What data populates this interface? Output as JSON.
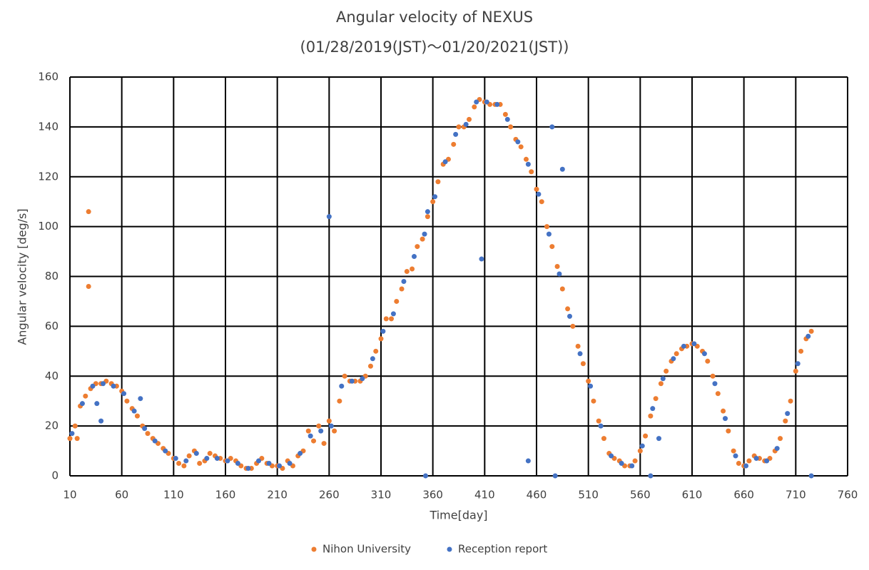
{
  "chart_data": {
    "type": "scatter",
    "title": "Angular velocity of NEXUS",
    "subtitle": "(01/28/2019(JST)～01/20/2021(JST))",
    "x_label": "Time[day]",
    "y_label": "Angular velocity [deg/s]",
    "xlim": [
      10,
      760
    ],
    "xticks": [
      10,
      60,
      110,
      160,
      210,
      260,
      310,
      360,
      410,
      460,
      510,
      560,
      610,
      660,
      710,
      760
    ],
    "ylim": [
      0,
      160
    ],
    "yticks": [
      0,
      20,
      40,
      60,
      80,
      100,
      120,
      140,
      160
    ],
    "grid": true,
    "legend": "bottom",
    "series": [
      {
        "name": "Nihon University",
        "color": "#ed7d31",
        "x": [
          10,
          15,
          20,
          25,
          30,
          35,
          40,
          45,
          50,
          55,
          60,
          65,
          70,
          75,
          80,
          85,
          90,
          95,
          100,
          105,
          110,
          115,
          120,
          125,
          130,
          135,
          140,
          145,
          150,
          155,
          160,
          165,
          170,
          175,
          180,
          185,
          190,
          195,
          200,
          205,
          210,
          215,
          220,
          225,
          230,
          235,
          240,
          245,
          250,
          255,
          260,
          265,
          270,
          275,
          280,
          285,
          290,
          295,
          300,
          305,
          310,
          315,
          320,
          325,
          330,
          335,
          340,
          345,
          350,
          355,
          360,
          365,
          370,
          375,
          380,
          385,
          390,
          395,
          400,
          405,
          410,
          415,
          420,
          425,
          430,
          435,
          440,
          445,
          450,
          455,
          460,
          465,
          470,
          475,
          480,
          485,
          490,
          495,
          500,
          505,
          510,
          515,
          520,
          525,
          530,
          535,
          540,
          545,
          550,
          555,
          560,
          565,
          570,
          575,
          580,
          585,
          590,
          595,
          600,
          605,
          610,
          615,
          620,
          625,
          630,
          635,
          640,
          645,
          650,
          655,
          660,
          665,
          670,
          675,
          680,
          685,
          690,
          695,
          700,
          705,
          710,
          715,
          720,
          725,
          28,
          28,
          17
        ],
        "values": [
          15,
          20,
          28,
          32,
          35,
          37,
          37,
          38,
          37,
          36,
          34,
          30,
          27,
          24,
          20,
          17,
          15,
          13,
          11,
          9,
          7,
          5,
          4,
          8,
          10,
          5,
          6,
          9,
          8,
          7,
          6,
          7,
          6,
          4,
          3,
          3,
          5,
          7,
          5,
          4,
          4,
          3,
          6,
          4,
          8,
          10,
          18,
          14,
          20,
          13,
          22,
          18,
          30,
          40,
          38,
          38,
          38,
          40,
          44,
          50,
          55,
          63,
          63,
          70,
          75,
          82,
          83,
          92,
          95,
          104,
          110,
          118,
          125,
          127,
          133,
          140,
          140,
          143,
          148,
          151,
          150,
          149,
          149,
          149,
          145,
          140,
          135,
          132,
          127,
          122,
          115,
          110,
          100,
          92,
          84,
          75,
          67,
          60,
          52,
          45,
          38,
          30,
          22,
          15,
          9,
          7,
          6,
          4,
          4,
          6,
          10,
          16,
          24,
          31,
          37,
          42,
          46,
          49,
          51,
          52,
          53,
          52,
          50,
          46,
          40,
          33,
          26,
          18,
          10,
          5,
          4,
          6,
          8,
          7,
          6,
          7,
          10,
          15,
          22,
          30,
          42,
          50,
          55,
          58,
          106,
          76,
          15
        ]
      },
      {
        "name": "Reception report",
        "color": "#4472c4",
        "x": [
          12,
          22,
          32,
          42,
          52,
          62,
          72,
          82,
          92,
          102,
          112,
          122,
          132,
          142,
          152,
          162,
          172,
          182,
          192,
          202,
          212,
          222,
          232,
          242,
          252,
          262,
          272,
          282,
          292,
          302,
          312,
          322,
          332,
          342,
          352,
          362,
          372,
          382,
          392,
          402,
          412,
          422,
          432,
          442,
          452,
          462,
          472,
          482,
          492,
          502,
          512,
          522,
          532,
          542,
          552,
          562,
          572,
          582,
          592,
          602,
          612,
          622,
          632,
          642,
          652,
          662,
          672,
          682,
          692,
          702,
          712,
          722,
          36,
          40,
          78,
          260,
          355,
          353,
          407,
          452,
          475,
          478,
          485,
          570,
          578,
          725
        ],
        "values": [
          17,
          29,
          36,
          37,
          36,
          33,
          26,
          19,
          14,
          10,
          7,
          6,
          9,
          7,
          7,
          6,
          5,
          3,
          6,
          5,
          4,
          5,
          9,
          16,
          18,
          20,
          36,
          38,
          39,
          47,
          58,
          65,
          78,
          88,
          97,
          112,
          126,
          137,
          141,
          150,
          150,
          149,
          143,
          134,
          125,
          113,
          97,
          81,
          64,
          49,
          36,
          20,
          8,
          5,
          4,
          12,
          27,
          39,
          47,
          52,
          53,
          49,
          37,
          23,
          8,
          4,
          7,
          6,
          11,
          25,
          45,
          56,
          29,
          22,
          31,
          104,
          106,
          0,
          87,
          6,
          140,
          0,
          123,
          0,
          15,
          0
        ]
      }
    ]
  }
}
